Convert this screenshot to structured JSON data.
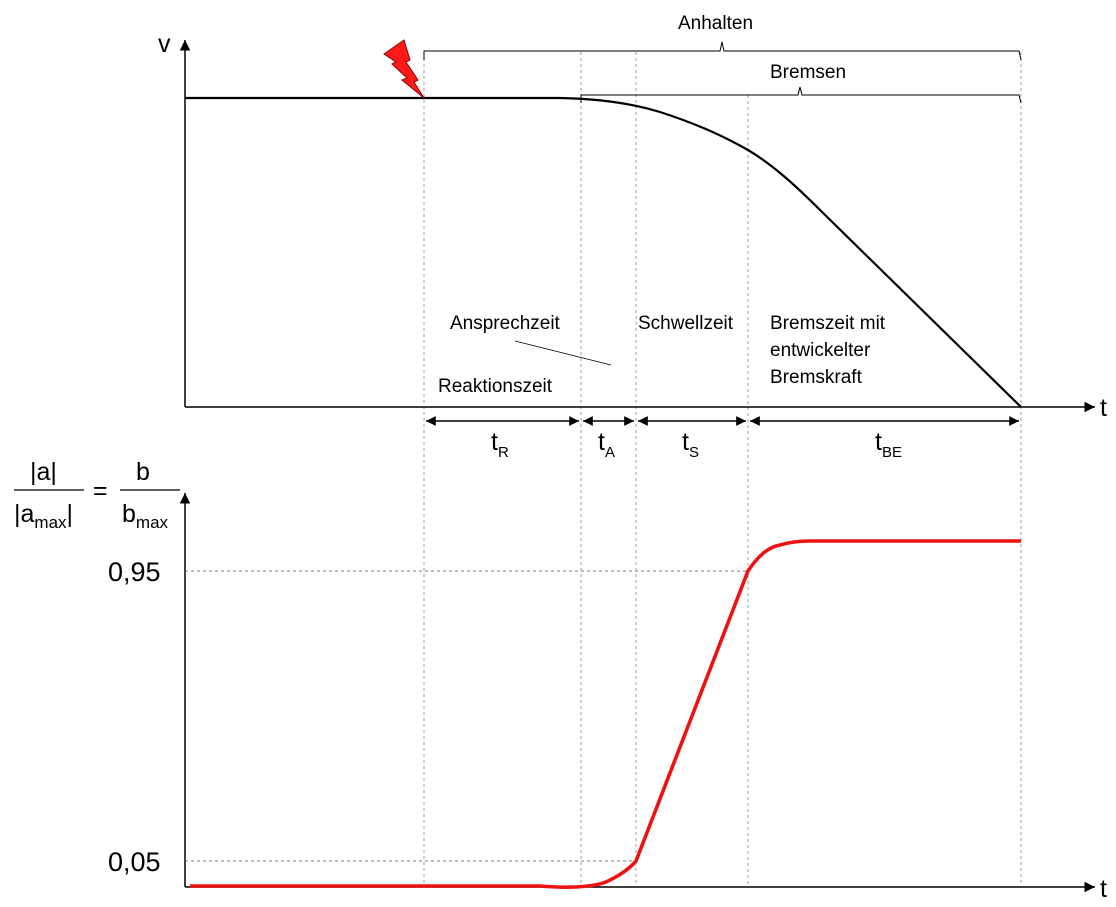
{
  "top_plot": {
    "y_axis_label": "v",
    "x_axis_label": "t",
    "brace_total_label": "Anhalten",
    "brace_braking_label": "Bremsen",
    "phase_labels": {
      "response": "Ansprechzeit",
      "reaction": "Reaktionszeit",
      "threshold": "Schwellzeit",
      "braking_line1": "Bremszeit mit",
      "braking_line2": "entwickelter",
      "braking_line3": "Bremskraft"
    },
    "intervals": [
      {
        "base": "t",
        "sub": "R"
      },
      {
        "base": "t",
        "sub": "A"
      },
      {
        "base": "t",
        "sub": "S"
      },
      {
        "base": "t",
        "sub": "BE"
      }
    ],
    "colors": {
      "speed_curve": "#000000",
      "lightning": "#ff1a1a"
    },
    "icon": "lightning-icon"
  },
  "bottom_plot": {
    "x_axis_label": "t",
    "y_label": {
      "num_left": "|a|",
      "den_left_base": "|a",
      "den_left_sub": "max",
      "den_left_close": "|",
      "equals": "=",
      "num_right": "b",
      "den_right_base": "b",
      "den_right_sub": "max"
    },
    "y_ticks": [
      "0,95",
      "0,05"
    ],
    "colors": {
      "decel_curve": "#ee1111"
    }
  }
}
